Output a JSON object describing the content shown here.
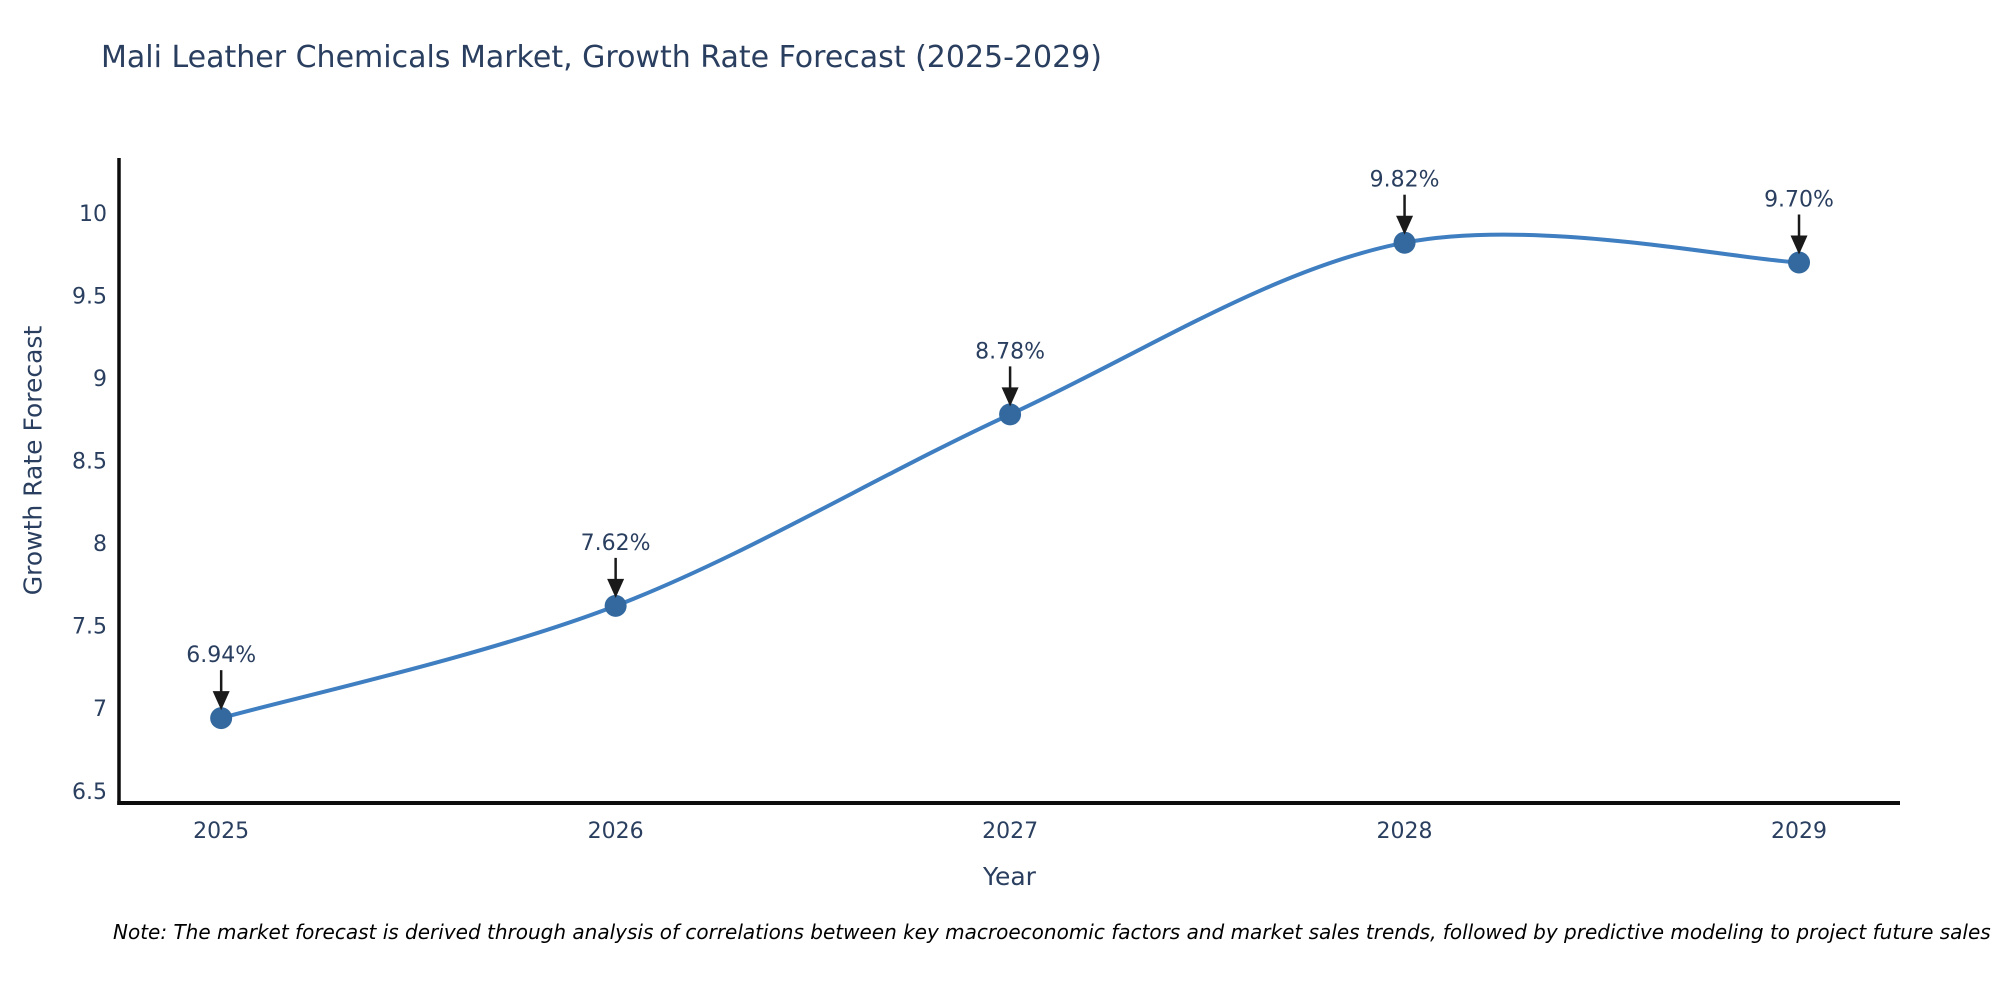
{
  "title": "Mali Leather Chemicals Market, Growth Rate Forecast (2025-2029)",
  "note": "Note: The market forecast is derived through analysis of correlations between key macroeconomic factors and market sales trends, followed by predictive modeling to project future sales",
  "chart_data": {
    "type": "line",
    "title": "Mali Leather Chemicals Market, Growth Rate Forecast (2025-2029)",
    "xlabel": "Year",
    "ylabel": "Growth Rate Forecast",
    "x": [
      2025,
      2026,
      2027,
      2028,
      2029
    ],
    "series": [
      {
        "name": "Growth Rate Forecast",
        "values": [
          6.94,
          7.62,
          8.78,
          9.82,
          9.7
        ]
      }
    ],
    "point_labels": [
      "6.94%",
      "7.62%",
      "8.78%",
      "9.82%",
      "9.70%"
    ],
    "xticks": [
      2025,
      2026,
      2027,
      2028,
      2029
    ],
    "xtick_labels": [
      "2025",
      "2026",
      "2027",
      "2028",
      "2029"
    ],
    "yticks": [
      6.5,
      7,
      7.5,
      8,
      8.5,
      9,
      9.5,
      10
    ],
    "ytick_labels": [
      "6.5",
      "7",
      "7.5",
      "8",
      "8.5",
      "9",
      "9.5",
      "10"
    ],
    "xlim": [
      2024.741,
      2029.256
    ],
    "ylim": [
      6.426,
      10.333
    ],
    "grid": false,
    "legend": false,
    "line_shape": "spline",
    "colors": {
      "line": "#3f7fc1",
      "marker": "#33699f",
      "axis": "#0d0d0d",
      "tick_text": "#2a3f5f",
      "annotation_arrow": "#1a1a1a",
      "title_text": "#2a3f5f",
      "note_text": "#000000"
    }
  }
}
